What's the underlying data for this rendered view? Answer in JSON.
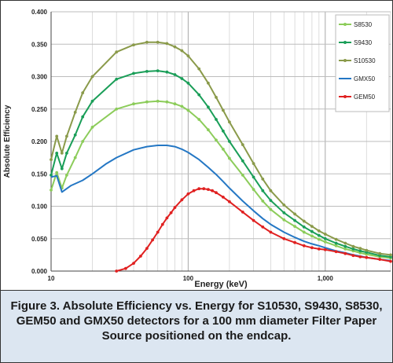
{
  "chart_data": {
    "type": "line",
    "x_scale": "log",
    "xlabel": "Energy (keV)",
    "ylabel": "Absolute Efficiency",
    "xlim": [
      10,
      3000
    ],
    "ylim": [
      0,
      0.4
    ],
    "x_ticks": [
      10,
      100,
      1000
    ],
    "x_tick_labels": [
      "10",
      "100",
      "1,000"
    ],
    "y_ticks": [
      0,
      0.05,
      0.1,
      0.15,
      0.2,
      0.25,
      0.3,
      0.35,
      0.4
    ],
    "y_tick_labels": [
      "0.000",
      "0.050",
      "0.100",
      "0.150",
      "0.200",
      "0.250",
      "0.300",
      "0.350",
      "0.400"
    ],
    "grid": "major and minor (log x)",
    "legend_position": "right",
    "series": [
      {
        "name": "S8530",
        "color": "#8ccc5a",
        "markers": true,
        "points": [
          [
            10,
            0.125
          ],
          [
            11,
            0.152
          ],
          [
            12,
            0.128
          ],
          [
            13,
            0.148
          ],
          [
            15,
            0.175
          ],
          [
            17,
            0.2
          ],
          [
            20,
            0.222
          ],
          [
            30,
            0.25
          ],
          [
            40,
            0.258
          ],
          [
            50,
            0.261
          ],
          [
            60,
            0.262
          ],
          [
            70,
            0.261
          ],
          [
            80,
            0.258
          ],
          [
            90,
            0.254
          ],
          [
            100,
            0.248
          ],
          [
            120,
            0.234
          ],
          [
            140,
            0.218
          ],
          [
            160,
            0.202
          ],
          [
            180,
            0.188
          ],
          [
            200,
            0.174
          ],
          [
            250,
            0.148
          ],
          [
            300,
            0.126
          ],
          [
            350,
            0.108
          ],
          [
            400,
            0.095
          ],
          [
            500,
            0.079
          ],
          [
            600,
            0.069
          ],
          [
            700,
            0.06
          ],
          [
            800,
            0.054
          ],
          [
            900,
            0.049
          ],
          [
            1000,
            0.045
          ],
          [
            1200,
            0.039
          ],
          [
            1400,
            0.034
          ],
          [
            1600,
            0.031
          ],
          [
            1800,
            0.028
          ],
          [
            2000,
            0.026
          ],
          [
            2500,
            0.022
          ],
          [
            3000,
            0.02
          ]
        ]
      },
      {
        "name": "S9430",
        "color": "#1a9e58",
        "markers": true,
        "points": [
          [
            10,
            0.148
          ],
          [
            11,
            0.182
          ],
          [
            12,
            0.158
          ],
          [
            13,
            0.182
          ],
          [
            15,
            0.21
          ],
          [
            17,
            0.238
          ],
          [
            20,
            0.262
          ],
          [
            30,
            0.296
          ],
          [
            40,
            0.305
          ],
          [
            50,
            0.308
          ],
          [
            60,
            0.309
          ],
          [
            70,
            0.307
          ],
          [
            80,
            0.303
          ],
          [
            90,
            0.297
          ],
          [
            100,
            0.29
          ],
          [
            120,
            0.272
          ],
          [
            140,
            0.253
          ],
          [
            160,
            0.234
          ],
          [
            180,
            0.216
          ],
          [
            200,
            0.2
          ],
          [
            250,
            0.17
          ],
          [
            300,
            0.145
          ],
          [
            350,
            0.124
          ],
          [
            400,
            0.109
          ],
          [
            500,
            0.09
          ],
          [
            600,
            0.078
          ],
          [
            700,
            0.068
          ],
          [
            800,
            0.061
          ],
          [
            900,
            0.055
          ],
          [
            1000,
            0.05
          ],
          [
            1200,
            0.043
          ],
          [
            1400,
            0.038
          ],
          [
            1600,
            0.034
          ],
          [
            1800,
            0.031
          ],
          [
            2000,
            0.029
          ],
          [
            2500,
            0.024
          ],
          [
            3000,
            0.022
          ]
        ]
      },
      {
        "name": "S10530",
        "color": "#8a9a4a",
        "markers": true,
        "points": [
          [
            10,
            0.172
          ],
          [
            11,
            0.208
          ],
          [
            12,
            0.182
          ],
          [
            13,
            0.208
          ],
          [
            15,
            0.245
          ],
          [
            17,
            0.275
          ],
          [
            20,
            0.3
          ],
          [
            30,
            0.338
          ],
          [
            40,
            0.349
          ],
          [
            50,
            0.353
          ],
          [
            60,
            0.353
          ],
          [
            70,
            0.351
          ],
          [
            80,
            0.346
          ],
          [
            90,
            0.34
          ],
          [
            100,
            0.332
          ],
          [
            120,
            0.312
          ],
          [
            140,
            0.29
          ],
          [
            160,
            0.268
          ],
          [
            180,
            0.248
          ],
          [
            200,
            0.23
          ],
          [
            250,
            0.195
          ],
          [
            300,
            0.166
          ],
          [
            350,
            0.142
          ],
          [
            400,
            0.124
          ],
          [
            500,
            0.102
          ],
          [
            600,
            0.088
          ],
          [
            700,
            0.077
          ],
          [
            800,
            0.069
          ],
          [
            900,
            0.062
          ],
          [
            1000,
            0.057
          ],
          [
            1200,
            0.049
          ],
          [
            1400,
            0.043
          ],
          [
            1600,
            0.038
          ],
          [
            1800,
            0.035
          ],
          [
            2000,
            0.032
          ],
          [
            2500,
            0.027
          ],
          [
            3000,
            0.025
          ]
        ]
      },
      {
        "name": "GMX50",
        "color": "#2477c4",
        "markers": false,
        "points": [
          [
            10,
            0.145
          ],
          [
            11,
            0.147
          ],
          [
            12,
            0.122
          ],
          [
            14,
            0.132
          ],
          [
            17,
            0.14
          ],
          [
            20,
            0.15
          ],
          [
            25,
            0.165
          ],
          [
            30,
            0.175
          ],
          [
            40,
            0.187
          ],
          [
            50,
            0.192
          ],
          [
            60,
            0.194
          ],
          [
            70,
            0.194
          ],
          [
            80,
            0.192
          ],
          [
            90,
            0.188
          ],
          [
            100,
            0.183
          ],
          [
            120,
            0.172
          ],
          [
            140,
            0.16
          ],
          [
            160,
            0.149
          ],
          [
            180,
            0.138
          ],
          [
            200,
            0.128
          ],
          [
            250,
            0.108
          ],
          [
            300,
            0.093
          ],
          [
            350,
            0.081
          ],
          [
            400,
            0.072
          ],
          [
            500,
            0.06
          ],
          [
            600,
            0.052
          ],
          [
            700,
            0.046
          ],
          [
            800,
            0.042
          ],
          [
            900,
            0.039
          ],
          [
            1000,
            0.036
          ],
          [
            1200,
            0.031
          ],
          [
            1400,
            0.028
          ],
          [
            1600,
            0.025
          ],
          [
            1800,
            0.023
          ],
          [
            2000,
            0.021
          ],
          [
            2500,
            0.018
          ],
          [
            3000,
            0.016
          ]
        ]
      },
      {
        "name": "GEM50",
        "color": "#e02020",
        "markers": true,
        "points": [
          [
            30,
            0.0
          ],
          [
            35,
            0.004
          ],
          [
            40,
            0.012
          ],
          [
            45,
            0.023
          ],
          [
            50,
            0.035
          ],
          [
            55,
            0.048
          ],
          [
            60,
            0.06
          ],
          [
            65,
            0.072
          ],
          [
            70,
            0.082
          ],
          [
            75,
            0.09
          ],
          [
            80,
            0.098
          ],
          [
            90,
            0.11
          ],
          [
            100,
            0.119
          ],
          [
            110,
            0.124
          ],
          [
            120,
            0.127
          ],
          [
            130,
            0.127
          ],
          [
            140,
            0.126
          ],
          [
            150,
            0.124
          ],
          [
            160,
            0.121
          ],
          [
            180,
            0.114
          ],
          [
            200,
            0.107
          ],
          [
            250,
            0.091
          ],
          [
            300,
            0.078
          ],
          [
            350,
            0.068
          ],
          [
            400,
            0.06
          ],
          [
            500,
            0.05
          ],
          [
            600,
            0.044
          ],
          [
            700,
            0.039
          ],
          [
            800,
            0.036
          ],
          [
            900,
            0.034
          ],
          [
            1000,
            0.033
          ],
          [
            1200,
            0.03
          ],
          [
            1400,
            0.027
          ],
          [
            1600,
            0.024
          ],
          [
            1800,
            0.022
          ],
          [
            2000,
            0.021
          ],
          [
            2500,
            0.018
          ],
          [
            3000,
            0.015
          ]
        ]
      }
    ]
  },
  "caption": {
    "text": "Figure 3. Absolute Efficiency vs. Energy for S10530, S9430, S8530, GEM50 and GMX50 detectors for a 100 mm diameter Filter Paper Source positioned on the endcap."
  }
}
